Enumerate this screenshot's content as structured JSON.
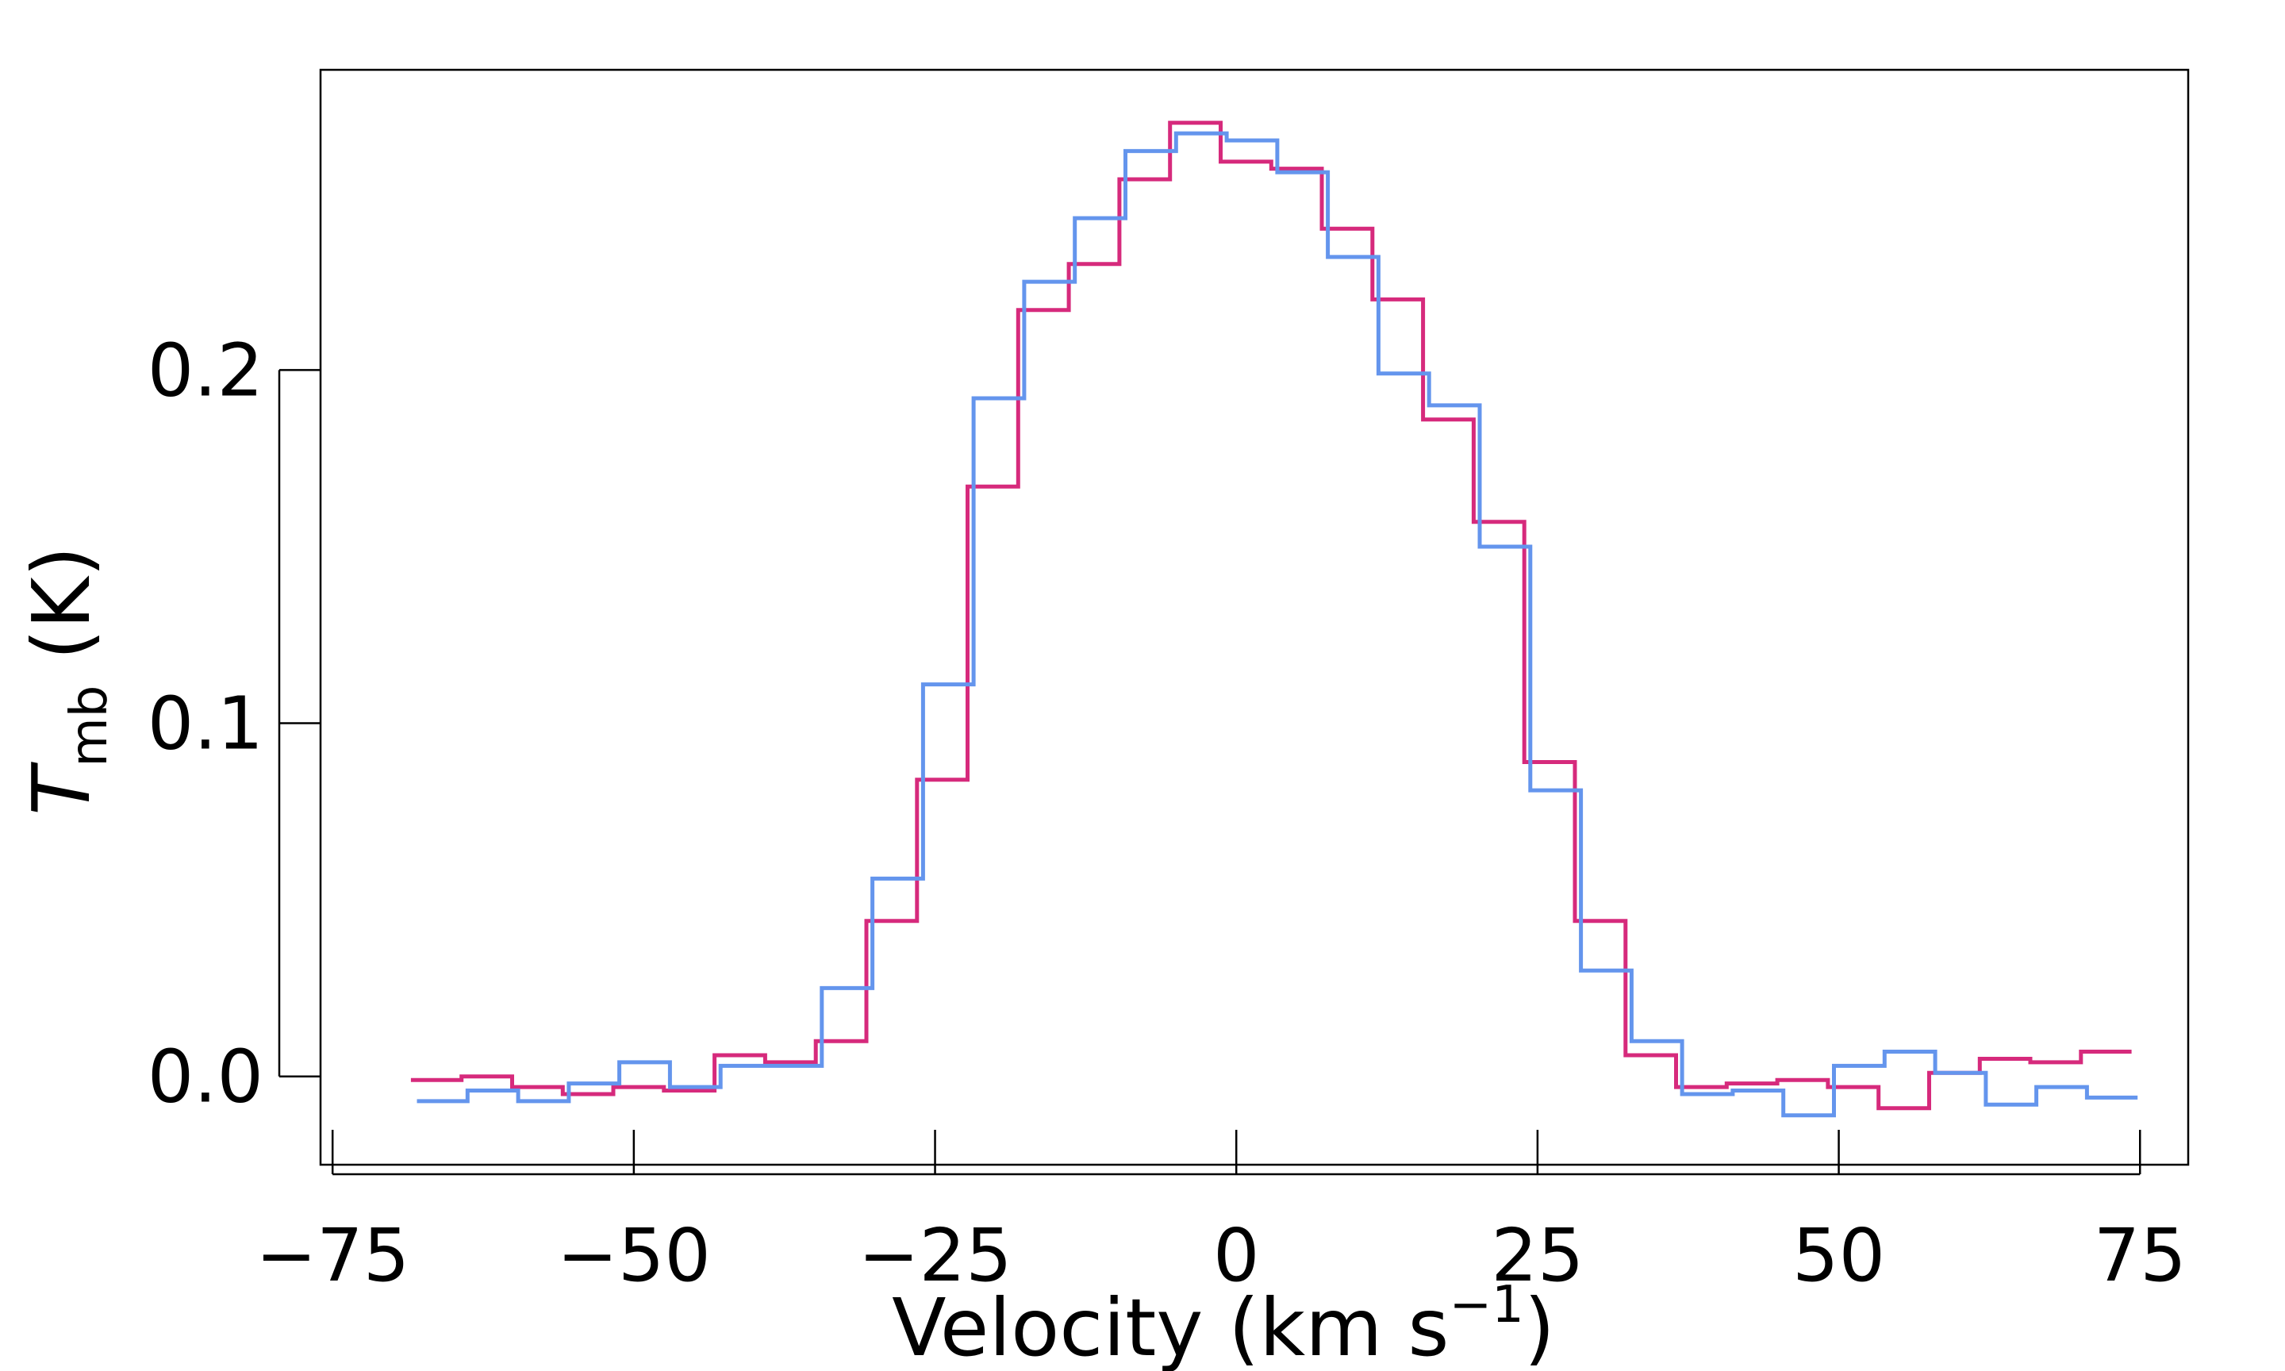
{
  "chart_data": {
    "type": "line",
    "step": true,
    "title": "",
    "xlabel": {
      "text": "Velocity (km s",
      "sup": "−1",
      "close": ")"
    },
    "ylabel": {
      "main": "T",
      "sub": "mb",
      "unit": " (K)"
    },
    "xlim": [
      -76,
      79
    ],
    "ylim": [
      -0.025,
      0.285
    ],
    "xticks": [
      -75,
      -50,
      -25,
      0,
      25,
      50,
      75
    ],
    "xtick_labels": [
      "−75",
      "−50",
      "−25",
      "0",
      "25",
      "50",
      "75"
    ],
    "yticks": [
      0.0,
      0.1,
      0.2
    ],
    "ytick_labels": [
      "0.0",
      "0.1",
      "0.2"
    ],
    "grid": false,
    "legend": null,
    "series": [
      {
        "name": "magenta spectrum",
        "color": "#d62a7c",
        "x": [
          -68.5,
          -64.3,
          -60.1,
          -55.9,
          -51.7,
          -47.5,
          -43.3,
          -39.1,
          -34.9,
          -30.7,
          -26.5,
          -22.3,
          -18.1,
          -13.9,
          -9.7,
          -5.5,
          -1.3,
          2.9,
          7.1,
          11.3,
          15.5,
          19.7,
          23.9,
          28.1,
          32.3,
          36.5,
          40.7,
          44.9,
          49.1,
          53.3,
          57.5,
          61.7,
          65.9,
          70.1
        ],
        "y": [
          -0.001,
          0.0,
          -0.003,
          -0.005,
          -0.003,
          -0.004,
          0.006,
          0.004,
          0.01,
          0.044,
          0.084,
          0.167,
          0.217,
          0.23,
          0.254,
          0.27,
          0.259,
          0.257,
          0.24,
          0.22,
          0.186,
          0.157,
          0.089,
          0.044,
          0.006,
          -0.003,
          -0.002,
          -0.001,
          -0.003,
          -0.009,
          0.001,
          0.005,
          0.004,
          0.007
        ]
      },
      {
        "name": "blue spectrum",
        "color": "#6495ed",
        "x": [
          -68.0,
          -63.8,
          -59.6,
          -55.4,
          -51.2,
          -47.0,
          -42.8,
          -38.6,
          -34.4,
          -30.2,
          -26.0,
          -21.8,
          -17.6,
          -13.4,
          -9.2,
          -5.0,
          -0.8,
          3.4,
          7.6,
          11.8,
          16.0,
          20.2,
          24.4,
          28.6,
          32.8,
          37.0,
          41.2,
          45.4,
          49.6,
          53.8,
          58.0,
          62.2,
          66.4,
          70.6
        ],
        "y": [
          -0.007,
          -0.004,
          -0.007,
          -0.002,
          0.004,
          -0.003,
          0.003,
          0.003,
          0.025,
          0.056,
          0.111,
          0.192,
          0.225,
          0.243,
          0.262,
          0.267,
          0.265,
          0.256,
          0.232,
          0.199,
          0.19,
          0.15,
          0.081,
          0.03,
          0.01,
          -0.005,
          -0.004,
          -0.011,
          0.003,
          0.007,
          0.001,
          -0.008,
          -0.003,
          -0.006
        ]
      }
    ]
  }
}
